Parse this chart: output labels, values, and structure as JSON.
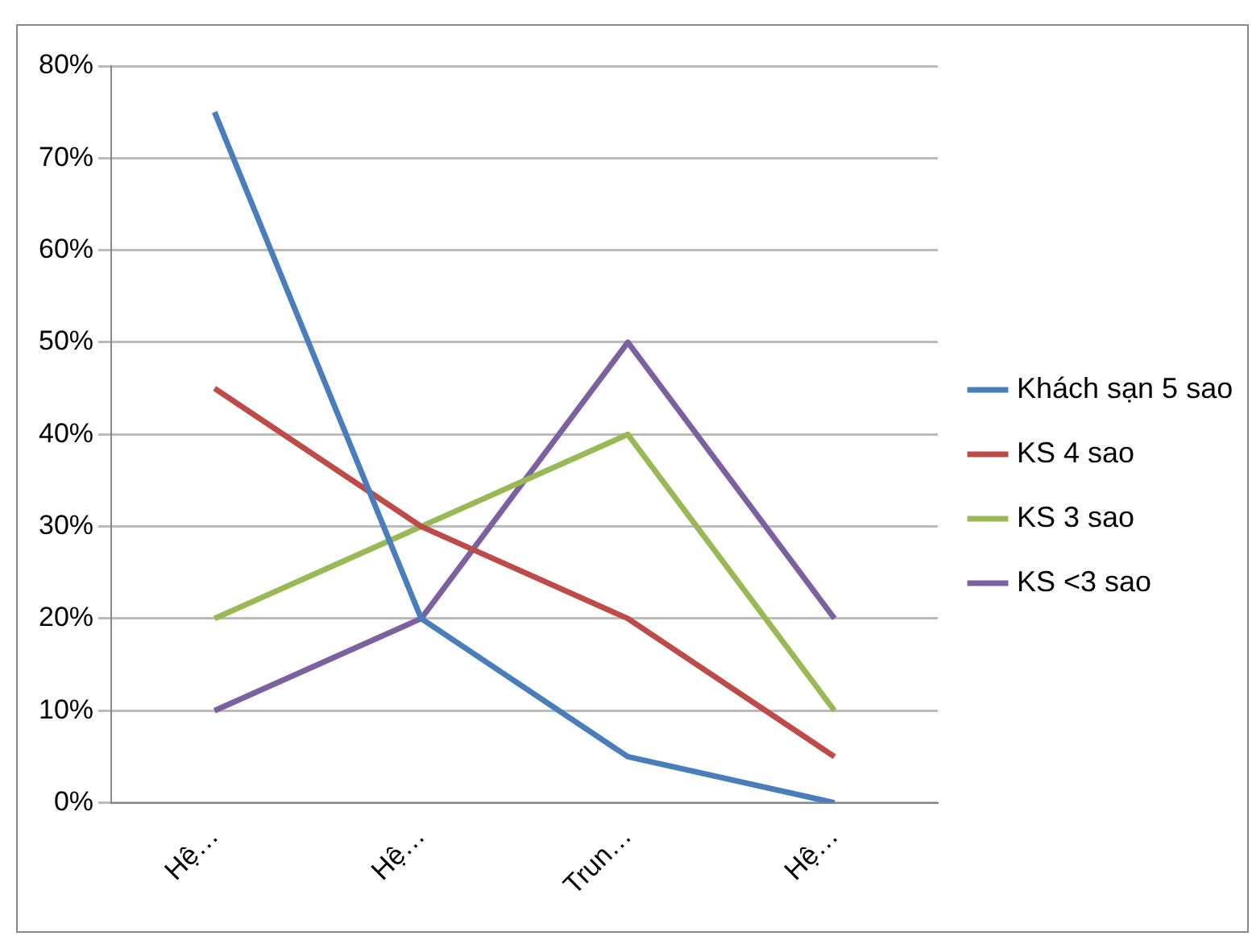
{
  "chart_data": {
    "type": "line",
    "categories": [
      "Hệ…",
      "Hệ…",
      "Trun…",
      "Hệ…"
    ],
    "series": [
      {
        "name": "Khách sạn 5 sao",
        "color": "#4a7ebb",
        "values": [
          75,
          20,
          5,
          0
        ]
      },
      {
        "name": "KS 4 sao",
        "color": "#be4b48",
        "values": [
          45,
          30,
          20,
          5
        ]
      },
      {
        "name": "KS 3 sao",
        "color": "#98b954",
        "values": [
          20,
          30,
          40,
          10
        ]
      },
      {
        "name": "KS <3 sao",
        "color": "#7d60a0",
        "values": [
          10,
          20,
          50,
          20
        ]
      }
    ],
    "ylim": [
      0,
      80
    ],
    "yticks": [
      {
        "value": 0,
        "label": "0%"
      },
      {
        "value": 10,
        "label": "10%"
      },
      {
        "value": 20,
        "label": "20%"
      },
      {
        "value": 30,
        "label": "30%"
      },
      {
        "value": 40,
        "label": "40%"
      },
      {
        "value": 50,
        "label": "50%"
      },
      {
        "value": 60,
        "label": "60%"
      },
      {
        "value": 70,
        "label": "70%"
      },
      {
        "value": 80,
        "label": "80%"
      }
    ],
    "grid": "y",
    "legend": "right",
    "marker": "none",
    "line_style": "solid"
  }
}
